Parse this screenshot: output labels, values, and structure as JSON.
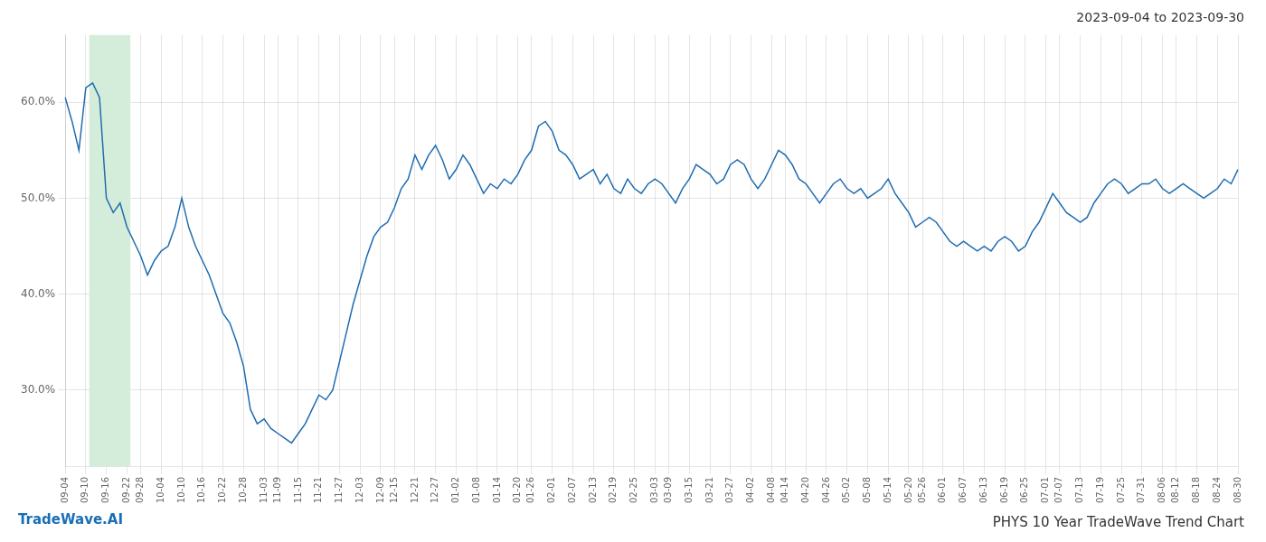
{
  "chart_data": {
    "type": "line",
    "title": "PHYS 10 Year TradeWave Trend Chart",
    "subtitle": "2023-09-04 to 2023-09-30",
    "annotations": [
      {
        "text": "TradeWave.AI",
        "color": "#1a6eb5"
      }
    ],
    "color": "#1f6cb0",
    "grid": true,
    "legend": false,
    "highlight": {
      "start": 4,
      "end": 9,
      "color": "#d4edda"
    },
    "ylim": [
      22,
      67
    ],
    "yticks": [
      {
        "value": 30.0,
        "label": "30.0%"
      },
      {
        "value": 40.0,
        "label": "40.0%"
      },
      {
        "value": 50.0,
        "label": "50.0%"
      },
      {
        "value": 60.0,
        "label": "60.0%"
      }
    ],
    "categories": [
      "09-04",
      null,
      null,
      "09-10",
      null,
      null,
      "09-16",
      null,
      null,
      "09-22",
      null,
      "09-28",
      null,
      null,
      "10-04",
      null,
      null,
      "10-10",
      null,
      null,
      "10-16",
      null,
      null,
      "10-22",
      null,
      null,
      "10-28",
      null,
      null,
      "11-03",
      null,
      "11-09",
      null,
      null,
      "11-15",
      null,
      null,
      "11-21",
      null,
      null,
      "11-27",
      null,
      null,
      "12-03",
      null,
      null,
      "12-09",
      null,
      "12-15",
      null,
      null,
      "12-21",
      null,
      null,
      "12-27",
      null,
      null,
      "01-02",
      null,
      null,
      "01-08",
      null,
      null,
      "01-14",
      null,
      null,
      "01-20",
      null,
      "01-26",
      null,
      null,
      "02-01",
      null,
      null,
      "02-07",
      null,
      null,
      "02-13",
      null,
      null,
      "02-19",
      null,
      null,
      "02-25",
      null,
      null,
      "03-03",
      null,
      "03-09",
      null,
      null,
      "03-15",
      null,
      null,
      "03-21",
      null,
      null,
      "03-27",
      null,
      null,
      "04-02",
      null,
      null,
      "04-08",
      null,
      "04-14",
      null,
      null,
      "04-20",
      null,
      null,
      "04-26",
      null,
      null,
      "05-02",
      null,
      null,
      "05-08",
      null,
      null,
      "05-14",
      null,
      null,
      "05-20",
      null,
      "05-26",
      null,
      null,
      "06-01",
      null,
      null,
      "06-07",
      null,
      null,
      "06-13",
      null,
      null,
      "06-19",
      null,
      null,
      "06-25",
      null,
      null,
      "07-01",
      null,
      "07-07",
      null,
      null,
      "07-13",
      null,
      null,
      "07-19",
      null,
      null,
      "07-25",
      null,
      null,
      "07-31",
      null,
      null,
      "08-06",
      null,
      "08-12",
      null,
      null,
      "08-18",
      null,
      null,
      "08-24",
      null,
      null,
      "08-30"
    ],
    "values": [
      60.5,
      58.0,
      55.0,
      61.5,
      62.0,
      60.5,
      50.0,
      48.5,
      49.5,
      47.0,
      45.5,
      44.0,
      42.0,
      43.5,
      44.5,
      45.0,
      47.0,
      50.0,
      47.0,
      45.0,
      43.5,
      42.0,
      40.0,
      38.0,
      37.0,
      35.0,
      32.5,
      28.0,
      26.5,
      27.0,
      26.0,
      25.5,
      25.0,
      24.5,
      25.5,
      26.5,
      28.0,
      29.5,
      29.0,
      30.0,
      33.0,
      36.0,
      39.0,
      41.5,
      44.0,
      46.0,
      47.0,
      47.5,
      49.0,
      51.0,
      52.0,
      54.5,
      53.0,
      54.5,
      55.5,
      54.0,
      52.0,
      53.0,
      54.5,
      53.5,
      52.0,
      50.5,
      51.5,
      51.0,
      52.0,
      51.5,
      52.5,
      54.0,
      55.0,
      57.5,
      58.0,
      57.0,
      55.0,
      54.5,
      53.5,
      52.0,
      52.5,
      53.0,
      51.5,
      52.5,
      51.0,
      50.5,
      52.0,
      51.0,
      50.5,
      51.5,
      52.0,
      51.5,
      50.5,
      49.5,
      51.0,
      52.0,
      53.5,
      53.0,
      52.5,
      51.5,
      52.0,
      53.5,
      54.0,
      53.5,
      52.0,
      51.0,
      52.0,
      53.5,
      55.0,
      54.5,
      53.5,
      52.0,
      51.5,
      50.5,
      49.5,
      50.5,
      51.5,
      52.0,
      51.0,
      50.5,
      51.0,
      50.0,
      50.5,
      51.0,
      52.0,
      50.5,
      49.5,
      48.5,
      47.0,
      47.5,
      48.0,
      47.5,
      46.5,
      45.5,
      45.0,
      45.5,
      45.0,
      44.5,
      45.0,
      44.5,
      45.5,
      46.0,
      45.5,
      44.5,
      45.0,
      46.5,
      47.5,
      49.0,
      50.5,
      49.5,
      48.5,
      48.0,
      47.5,
      48.0,
      49.5,
      50.5,
      51.5,
      52.0,
      51.5,
      50.5,
      51.0,
      51.5,
      51.5,
      52.0,
      51.0,
      50.5,
      51.0,
      51.5,
      51.0,
      50.5,
      50.0,
      50.5,
      51.0,
      52.0,
      51.5,
      53.0
    ]
  }
}
